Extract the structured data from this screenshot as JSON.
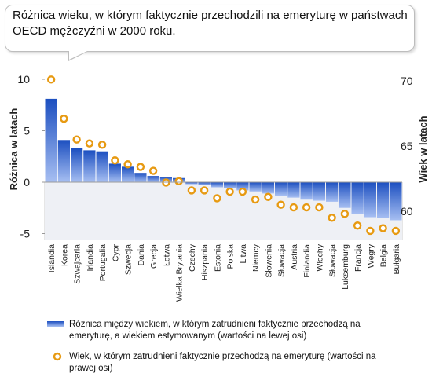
{
  "title": "Różnica wieku, w którym faktycznie przechodzili na emeryturę w państwach OECD mężczyźni w 2000 roku.",
  "colors": {
    "bar_top": "#1c4fc0",
    "bar_bottom": "#a7bff2",
    "below_zero_fill": "#eef0f5",
    "circle_stroke": "#e79a12",
    "grid": "#cccccc"
  },
  "legend": {
    "bars": "Różnica między wiekiem, w którym zatrudnieni faktycznie przechodzą na emeryturę, a wiekiem estymowanym (wartości na lewej osi)",
    "circles": "Wiek, w którym zatrudnieni faktycznie przechodzą na emeryturę (wartości na prawej osi)"
  },
  "chart_data": {
    "type": "bar",
    "categories": [
      "Islandia",
      "Korea",
      "Szwajcaria",
      "Irlandia",
      "Portugalia",
      "Cypr",
      "Szwecja",
      "Dania",
      "Grecja",
      "Łotwa",
      "Wielka Brytania",
      "Czechy",
      "Hiszpania",
      "Estonia",
      "Polska",
      "Litwa",
      "Niemcy",
      "Słowenia",
      "Słowacja",
      "Austria",
      "Finlandia",
      "Włochy",
      "Słowacja",
      "Luksemburg",
      "Francja",
      "Węgry",
      "Belgia",
      "Bułgaria"
    ],
    "series": [
      {
        "type": "bar",
        "axis": "left",
        "values": [
          8.1,
          4.1,
          3.3,
          3.1,
          3.0,
          1.8,
          1.5,
          0.9,
          0.6,
          0.5,
          0.4,
          -0.2,
          -0.3,
          -0.5,
          -0.6,
          -0.8,
          -0.9,
          -1.1,
          -1.3,
          -1.5,
          -1.7,
          -1.8,
          -1.9,
          -2.5,
          -3.1,
          -3.4,
          -3.5,
          -3.7
        ]
      },
      {
        "type": "scatter",
        "axis": "right",
        "values": [
          70.1,
          67.1,
          65.5,
          65.2,
          65.1,
          63.9,
          63.6,
          63.4,
          63.1,
          62.2,
          62.3,
          61.6,
          61.6,
          61.0,
          61.5,
          61.5,
          60.9,
          61.1,
          60.5,
          60.3,
          60.3,
          60.3,
          59.5,
          59.8,
          58.9,
          58.5,
          58.7,
          58.5
        ]
      }
    ],
    "ylabel": "Różnica w latach",
    "y2label": "Wiek w latach",
    "ylim": [
      -5.5,
      10.5
    ],
    "y2lim": [
      58,
      70.5
    ],
    "yticks": [
      10,
      5,
      0,
      -5
    ],
    "y2ticks": [
      70,
      65,
      60
    ],
    "grid": true
  }
}
